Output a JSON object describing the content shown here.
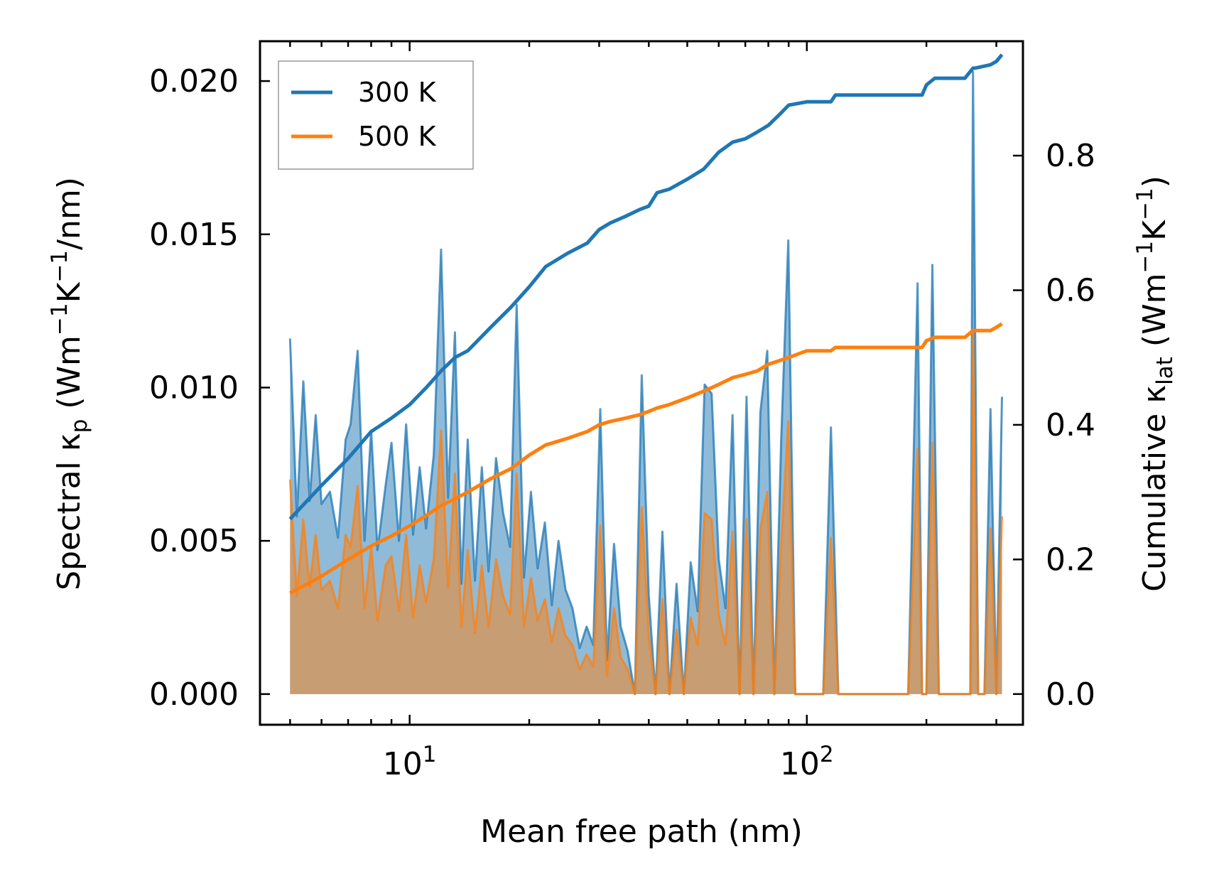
{
  "chart_data": {
    "type": "line",
    "xscale": "log",
    "xlim": [
      4.2,
      350
    ],
    "xlabel": "Mean free path (nm)",
    "x_ticks": [
      10,
      100
    ],
    "x_tick_labels": [
      {
        "base": "10",
        "exp": "1"
      },
      {
        "base": "10",
        "exp": "2"
      }
    ],
    "left_axis": {
      "label": {
        "prefix": "Spectral κ",
        "sub": "p",
        "middle": " (Wm",
        "exp1": "−1",
        "k": "K",
        "exp2": "−1",
        "suffix": "/nm)"
      },
      "ylim": [
        -0.001,
        0.0213
      ],
      "ticks": [
        0.0,
        0.005,
        0.01,
        0.015,
        0.02
      ],
      "tick_labels": [
        "0.000",
        "0.005",
        "0.010",
        "0.015",
        "0.020"
      ]
    },
    "right_axis": {
      "label": {
        "prefix": "Cumulative κ",
        "sub": "lat",
        "middle": " (Wm",
        "exp1": "−1",
        "k": "K",
        "exp2": "−1",
        "suffix": ")"
      },
      "ylim": [
        -0.0456,
        0.97
      ],
      "ticks": [
        0.0,
        0.2,
        0.4,
        0.6,
        0.8
      ],
      "tick_labels": [
        "0.0",
        "0.2",
        "0.4",
        "0.6",
        "0.8"
      ]
    },
    "legend": {
      "position": "upper-left",
      "entries": [
        "300 K",
        "500 K"
      ]
    },
    "series": [
      {
        "name": "300 K",
        "color": "#1f77b4",
        "fill_color": "#1f77b4",
        "spectral": {
          "x": [
            5.0,
            5.2,
            5.4,
            5.6,
            5.8,
            6.0,
            6.3,
            6.6,
            6.9,
            7.1,
            7.4,
            7.7,
            8.0,
            8.3,
            8.7,
            9.0,
            9.4,
            9.8,
            10.2,
            10.6,
            11.0,
            11.5,
            12.0,
            12.5,
            13.0,
            13.5,
            14.0,
            14.6,
            15.2,
            15.8,
            16.5,
            17.2,
            17.9,
            18.6,
            19.4,
            20.2,
            21.0,
            21.9,
            22.8,
            23.7,
            24.7,
            25.7,
            26.8,
            27.9,
            29.0,
            30.2,
            31.4,
            32.7,
            34.0,
            35.4,
            36.9,
            38.4,
            40.0,
            41.6,
            43.3,
            45.1,
            47.0,
            49.0,
            51.0,
            53.1,
            55.3,
            57.6,
            60.0,
            62.4,
            65.0,
            67.7,
            70.5,
            73.4,
            76.4,
            79.5,
            82.8,
            86.2,
            89.8,
            93.5,
            97.3,
            110.0,
            115.0,
            120.0,
            130.0,
            150.0,
            180.0,
            190.0,
            195.0,
            200.0,
            207.0,
            215.0,
            230.0,
            250.0,
            258.0,
            262.0,
            270.0,
            280.0,
            290.0,
            300.0,
            310.0
          ],
          "y": [
            0.0116,
            0.0058,
            0.0102,
            0.0063,
            0.0091,
            0.0062,
            0.0066,
            0.0051,
            0.0083,
            0.0088,
            0.0112,
            0.005,
            0.0086,
            0.0047,
            0.0068,
            0.0082,
            0.005,
            0.0088,
            0.0052,
            0.0074,
            0.0054,
            0.0078,
            0.0145,
            0.0064,
            0.0118,
            0.0036,
            0.0083,
            0.0037,
            0.0074,
            0.004,
            0.0077,
            0.0059,
            0.0048,
            0.0127,
            0.0038,
            0.0066,
            0.0041,
            0.0056,
            0.0029,
            0.005,
            0.0034,
            0.0028,
            0.0015,
            0.0022,
            0.0016,
            0.0093,
            0.0011,
            0.0049,
            0.0022,
            0.0014,
            0.0,
            0.0104,
            0.0032,
            0.0,
            0.0053,
            0.0,
            0.0036,
            0.0,
            0.0043,
            0.0027,
            0.0101,
            0.0098,
            0.0044,
            0.0028,
            0.0091,
            0.0,
            0.0097,
            0.0,
            0.0092,
            0.0112,
            0.0,
            0.0083,
            0.0148,
            0.0,
            0.0,
            0.0,
            0.0087,
            0.0,
            0.0,
            0.0,
            0.0,
            0.0134,
            0.0,
            0.0,
            0.014,
            0.0,
            0.0,
            0.0,
            0.0,
            0.0203,
            0.0,
            0.0,
            0.0093,
            0.0,
            0.0097
          ]
        },
        "cumulative": {
          "x": [
            5.0,
            6.0,
            7.0,
            8.0,
            9.0,
            10.0,
            11.0,
            12.0,
            13.0,
            14.0,
            16.0,
            18.0,
            20.0,
            22.0,
            25.0,
            28.0,
            30.0,
            32.0,
            35.0,
            38.0,
            40.0,
            42.0,
            45.0,
            50.0,
            55.0,
            60.0,
            65.0,
            70.0,
            75.0,
            80.0,
            85.0,
            90.0,
            100.0,
            115.0,
            118.0,
            150.0,
            195.0,
            200.0,
            210.0,
            215.0,
            250.0,
            262.0,
            265.0,
            290.0,
            300.0,
            310.0
          ],
          "y": [
            0.26,
            0.31,
            0.35,
            0.39,
            0.41,
            0.43,
            0.455,
            0.48,
            0.5,
            0.51,
            0.545,
            0.575,
            0.605,
            0.635,
            0.655,
            0.67,
            0.69,
            0.7,
            0.71,
            0.72,
            0.725,
            0.745,
            0.75,
            0.765,
            0.78,
            0.805,
            0.82,
            0.825,
            0.835,
            0.845,
            0.86,
            0.875,
            0.88,
            0.88,
            0.89,
            0.89,
            0.89,
            0.905,
            0.915,
            0.915,
            0.915,
            0.93,
            0.93,
            0.935,
            0.94,
            0.95
          ]
        }
      },
      {
        "name": "500 K",
        "color": "#ff7f0e",
        "fill_color": "#ff7f0e",
        "spectral": {
          "x": [
            5.0,
            5.2,
            5.4,
            5.6,
            5.8,
            6.0,
            6.3,
            6.6,
            6.9,
            7.1,
            7.4,
            7.7,
            8.0,
            8.3,
            8.7,
            9.0,
            9.4,
            9.8,
            10.2,
            10.6,
            11.0,
            11.5,
            12.0,
            12.5,
            13.0,
            13.5,
            14.0,
            14.6,
            15.2,
            15.8,
            16.5,
            17.2,
            17.9,
            18.6,
            19.4,
            20.2,
            21.0,
            21.9,
            22.8,
            23.7,
            24.7,
            25.7,
            26.8,
            27.9,
            29.0,
            30.2,
            31.4,
            32.7,
            34.0,
            35.4,
            36.9,
            38.4,
            40.0,
            41.6,
            43.3,
            45.1,
            47.0,
            49.0,
            51.0,
            53.1,
            55.3,
            57.6,
            60.0,
            62.4,
            65.0,
            67.7,
            70.5,
            73.4,
            76.4,
            79.5,
            82.8,
            86.2,
            89.8,
            93.5,
            97.3,
            110.0,
            115.0,
            120.0,
            130.0,
            150.0,
            180.0,
            190.0,
            195.0,
            200.0,
            207.0,
            215.0,
            230.0,
            250.0,
            258.0,
            262.0,
            270.0,
            280.0,
            290.0,
            300.0,
            310.0
          ],
          "y": [
            0.007,
            0.0032,
            0.0057,
            0.0035,
            0.0052,
            0.0034,
            0.0037,
            0.0028,
            0.0052,
            0.0048,
            0.0068,
            0.0028,
            0.0048,
            0.0024,
            0.0042,
            0.0045,
            0.0027,
            0.0052,
            0.0025,
            0.0042,
            0.003,
            0.0044,
            0.0086,
            0.0035,
            0.0072,
            0.0022,
            0.0047,
            0.002,
            0.0042,
            0.0022,
            0.0044,
            0.0032,
            0.0026,
            0.0072,
            0.0022,
            0.0038,
            0.0024,
            0.0031,
            0.0017,
            0.0028,
            0.0019,
            0.0016,
            0.0008,
            0.0013,
            0.0009,
            0.0055,
            0.0006,
            0.0028,
            0.0012,
            0.0008,
            0.0,
            0.0061,
            0.0019,
            0.0,
            0.0031,
            0.0,
            0.0021,
            0.0,
            0.0025,
            0.0016,
            0.0059,
            0.0057,
            0.0026,
            0.0016,
            0.0053,
            0.0,
            0.0057,
            0.0,
            0.0054,
            0.0066,
            0.0,
            0.0049,
            0.0089,
            0.0,
            0.0,
            0.0,
            0.0051,
            0.0,
            0.0,
            0.0,
            0.0,
            0.008,
            0.0,
            0.0,
            0.0082,
            0.0,
            0.0,
            0.0,
            0.0,
            0.0119,
            0.0,
            0.0,
            0.0054,
            0.0,
            0.0058
          ]
        },
        "cumulative": {
          "x": [
            5.0,
            6.0,
            7.0,
            8.0,
            9.0,
            10.0,
            11.0,
            12.0,
            13.0,
            14.0,
            16.0,
            18.0,
            20.0,
            22.0,
            25.0,
            28.0,
            30.0,
            32.0,
            35.0,
            38.0,
            40.0,
            42.0,
            45.0,
            50.0,
            55.0,
            60.0,
            65.0,
            70.0,
            75.0,
            80.0,
            85.0,
            90.0,
            100.0,
            115.0,
            118.0,
            150.0,
            195.0,
            200.0,
            210.0,
            215.0,
            250.0,
            262.0,
            265.0,
            290.0,
            300.0,
            310.0
          ],
          "y": [
            0.15,
            0.175,
            0.2,
            0.22,
            0.235,
            0.25,
            0.265,
            0.28,
            0.29,
            0.3,
            0.32,
            0.335,
            0.355,
            0.37,
            0.38,
            0.39,
            0.4,
            0.405,
            0.41,
            0.415,
            0.42,
            0.425,
            0.43,
            0.44,
            0.45,
            0.46,
            0.47,
            0.475,
            0.48,
            0.49,
            0.495,
            0.5,
            0.51,
            0.51,
            0.515,
            0.515,
            0.515,
            0.525,
            0.53,
            0.53,
            0.53,
            0.54,
            0.54,
            0.54,
            0.545,
            0.55
          ]
        }
      }
    ]
  }
}
